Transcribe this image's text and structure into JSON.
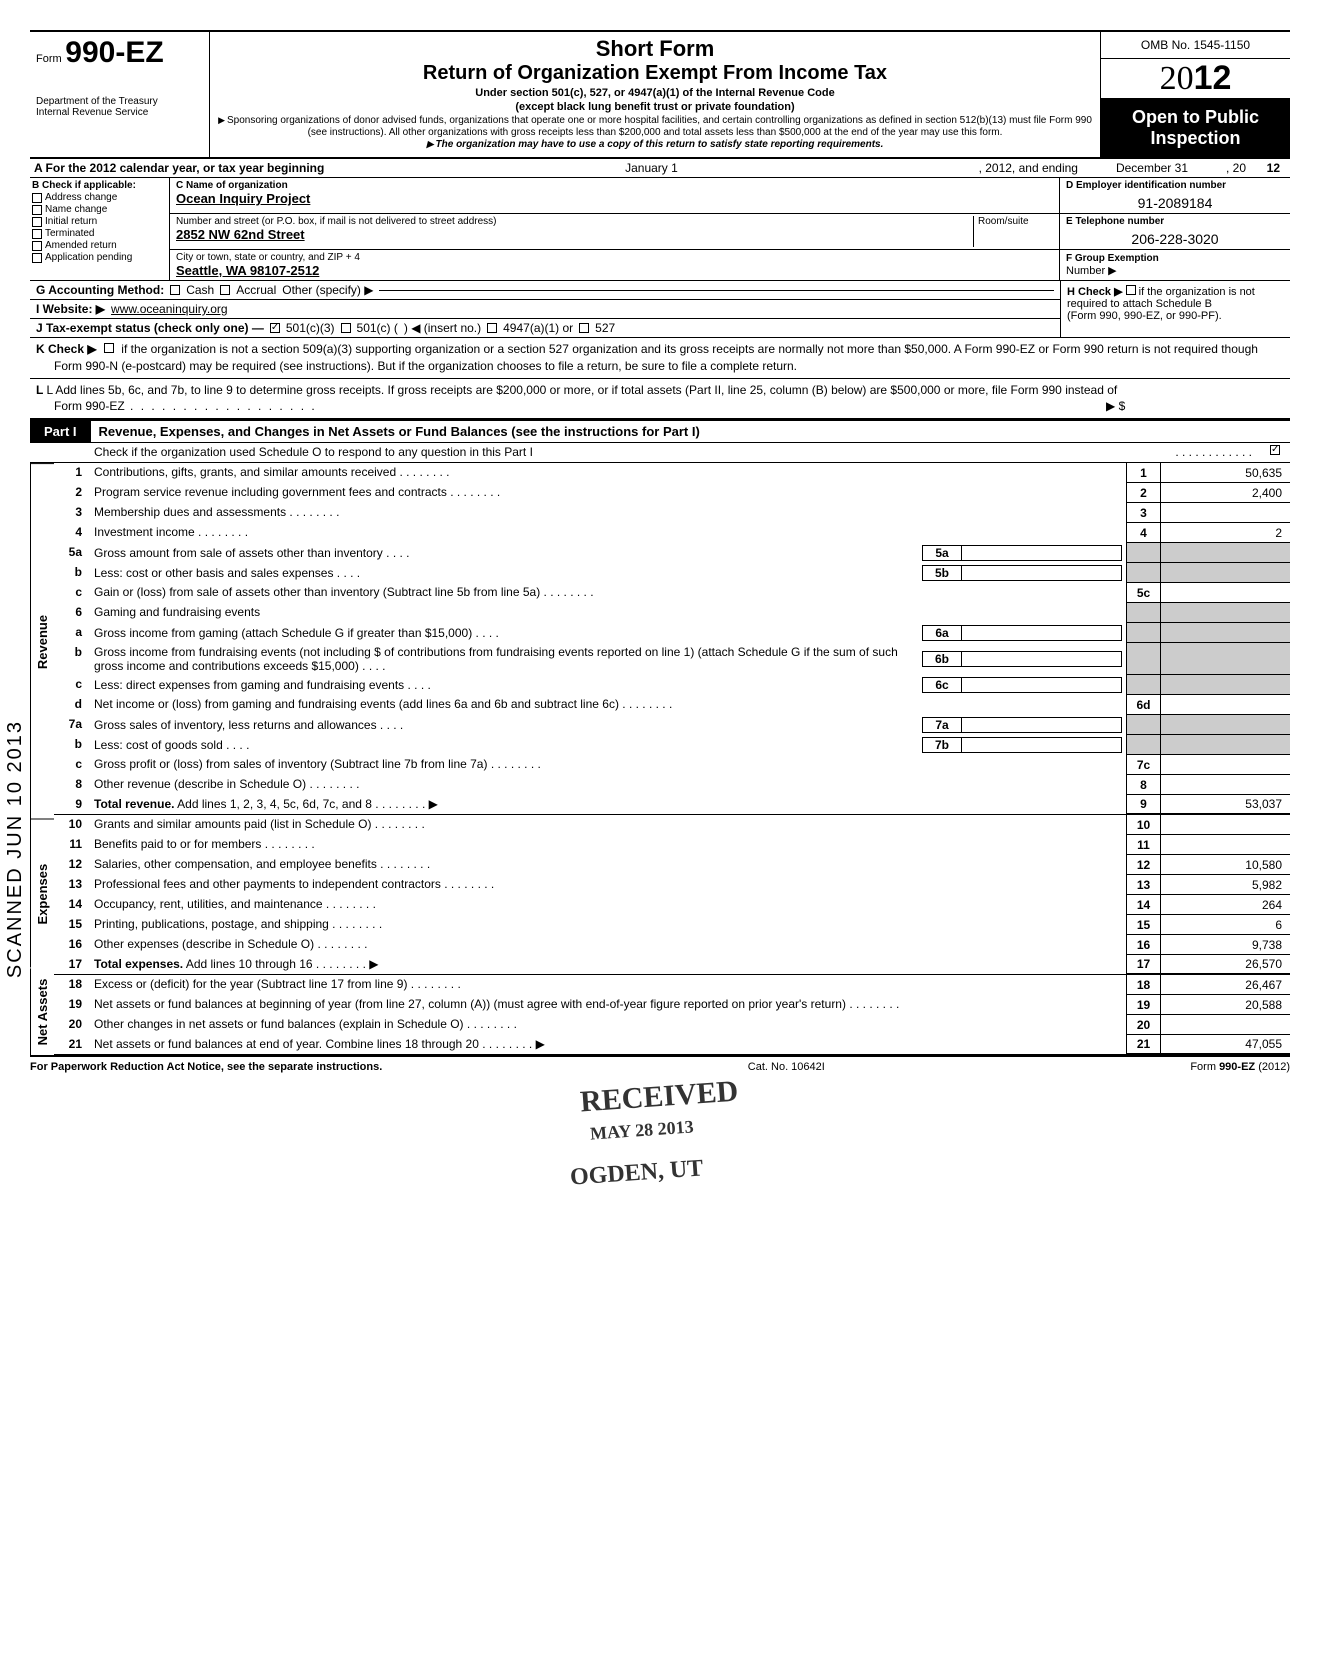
{
  "header": {
    "form_label": "Form",
    "form_number": "990-EZ",
    "dept1": "Department of the Treasury",
    "dept2": "Internal Revenue Service",
    "short_form": "Short Form",
    "title": "Return of Organization Exempt From Income Tax",
    "sub1": "Under section 501(c), 527, or 4947(a)(1) of the Internal Revenue Code",
    "sub2": "(except black lung benefit trust or private foundation)",
    "sub3": "Sponsoring organizations of donor advised funds, organizations that operate one or more hospital facilities, and certain controlling organizations as defined in section 512(b)(13) must file Form 990 (see instructions). All other organizations with gross receipts less than $200,000 and total assets less than $500,000 at the end of the year may use this form.",
    "sub4": "The organization may have to use a copy of this return to satisfy state reporting requirements.",
    "omb": "OMB No. 1545-1150",
    "year_prefix": "20",
    "year_suffix": "12",
    "open1": "Open to Public",
    "open2": "Inspection"
  },
  "row_a": {
    "a": "A For the 2012 calendar year, or tax year beginning",
    "mid": "January 1",
    "mid2": ", 2012, and ending",
    "end": "December 31",
    "end2": ", 20",
    "end3": "12"
  },
  "section_b": {
    "title": "B  Check if applicable:",
    "opts": [
      "Address change",
      "Name change",
      "Initial return",
      "Terminated",
      "Amended return",
      "Application pending"
    ]
  },
  "section_c": {
    "label": "C  Name of organization",
    "name": "Ocean Inquiry Project",
    "addr_label": "Number and street (or P.O. box, if mail is not delivered to street address)",
    "room": "Room/suite",
    "street": "2852 NW 62nd Street",
    "city_label": "City or town, state or country, and ZIP + 4",
    "city": "Seattle, WA 98107-2512"
  },
  "section_d": {
    "label": "D Employer identification number",
    "value": "91-2089184"
  },
  "section_e": {
    "label": "E Telephone number",
    "value": "206-228-3020"
  },
  "section_f": {
    "label": "F Group Exemption",
    "label2": "Number ▶"
  },
  "row_g": {
    "g": "G Accounting Method:",
    "cash": "Cash",
    "accrual": "Accrual",
    "other": "Other (specify) ▶"
  },
  "row_h": {
    "text": "H Check ▶",
    "text2": "if the organization is not",
    "text3": "required to attach Schedule B",
    "text4": "(Form 990, 990-EZ, or 990-PF)."
  },
  "row_i": {
    "label": "I  Website: ▶",
    "value": "www.oceaninquiry.org"
  },
  "row_j": {
    "label": "J Tax-exempt status (check only one) —",
    "o1": "501(c)(3)",
    "o2": "501(c) (",
    "o2b": ") ◀ (insert no.)",
    "o3": "4947(a)(1) or",
    "o4": "527"
  },
  "row_k": {
    "label": "K Check ▶",
    "text": "if the organization is not a section 509(a)(3) supporting organization or a section 527 organization and its gross receipts are normally not more than $50,000. A Form 990-EZ or Form 990 return is not required though Form 990-N (e-postcard) may be required (see instructions). But if the organization chooses to file a return, be sure to file a complete return."
  },
  "row_l": {
    "text": "L Add lines 5b, 6c, and 7b, to line 9 to determine gross receipts. If gross receipts are $200,000 or more, or if total assets (Part II, line 25, column (B) below) are $500,000 or more, file Form 990 instead of Form 990-EZ",
    "arrow": "▶  $"
  },
  "part1": {
    "tab": "Part I",
    "title": "Revenue, Expenses, and Changes in Net Assets or Fund Balances (see the instructions for Part I)",
    "check_line": "Check if the organization used Schedule O to respond to any question in this Part I"
  },
  "side_labels": {
    "rev": "Revenue",
    "exp": "Expenses",
    "na": "Net Assets"
  },
  "lines": {
    "1": {
      "n": "1",
      "d": "Contributions, gifts, grants, and similar amounts received",
      "rn": "1",
      "v": "50,635"
    },
    "2": {
      "n": "2",
      "d": "Program service revenue including government fees and contracts",
      "rn": "2",
      "v": "2,400"
    },
    "3": {
      "n": "3",
      "d": "Membership dues and assessments",
      "rn": "3",
      "v": ""
    },
    "4": {
      "n": "4",
      "d": "Investment income",
      "rn": "4",
      "v": "2"
    },
    "5a": {
      "n": "5a",
      "d": "Gross amount from sale of assets other than inventory",
      "mb": "5a"
    },
    "5b": {
      "n": "b",
      "d": "Less: cost or other basis and sales expenses",
      "mb": "5b"
    },
    "5c": {
      "n": "c",
      "d": "Gain or (loss) from sale of assets other than inventory (Subtract line 5b from line 5a)",
      "rn": "5c",
      "v": ""
    },
    "6": {
      "n": "6",
      "d": "Gaming and fundraising events"
    },
    "6a": {
      "n": "a",
      "d": "Gross income from gaming (attach Schedule G if greater than $15,000)",
      "mb": "6a"
    },
    "6b": {
      "n": "b",
      "d": "Gross income from fundraising events (not including  $                       of contributions from fundraising events reported on line 1) (attach Schedule G if the sum of such gross income and contributions exceeds $15,000)",
      "mb": "6b"
    },
    "6c": {
      "n": "c",
      "d": "Less: direct expenses from gaming and fundraising events",
      "mb": "6c"
    },
    "6d": {
      "n": "d",
      "d": "Net income or (loss) from gaming and fundraising events (add lines 6a and 6b and subtract line 6c)",
      "rn": "6d",
      "v": ""
    },
    "7a": {
      "n": "7a",
      "d": "Gross sales of inventory, less returns and allowances",
      "mb": "7a"
    },
    "7b": {
      "n": "b",
      "d": "Less: cost of goods sold",
      "mb": "7b"
    },
    "7c": {
      "n": "c",
      "d": "Gross profit or (loss) from sales of inventory (Subtract line 7b from line 7a)",
      "rn": "7c",
      "v": ""
    },
    "8": {
      "n": "8",
      "d": "Other revenue (describe in Schedule O)",
      "rn": "8",
      "v": ""
    },
    "9": {
      "n": "9",
      "d": "Total revenue. Add lines 1, 2, 3, 4, 5c, 6d, 7c, and 8",
      "rn": "9",
      "v": "53,037",
      "bold": true,
      "arrow": true
    },
    "10": {
      "n": "10",
      "d": "Grants and similar amounts paid (list in Schedule O)",
      "rn": "10",
      "v": ""
    },
    "11": {
      "n": "11",
      "d": "Benefits paid to or for members",
      "rn": "11",
      "v": ""
    },
    "12": {
      "n": "12",
      "d": "Salaries, other compensation, and employee benefits",
      "rn": "12",
      "v": "10,580"
    },
    "13": {
      "n": "13",
      "d": "Professional fees and other payments to independent contractors",
      "rn": "13",
      "v": "5,982"
    },
    "14": {
      "n": "14",
      "d": "Occupancy, rent, utilities, and maintenance",
      "rn": "14",
      "v": "264"
    },
    "15": {
      "n": "15",
      "d": "Printing, publications, postage, and shipping",
      "rn": "15",
      "v": "6"
    },
    "16": {
      "n": "16",
      "d": "Other expenses (describe in Schedule O)",
      "rn": "16",
      "v": "9,738"
    },
    "17": {
      "n": "17",
      "d": "Total expenses. Add lines 10 through 16",
      "rn": "17",
      "v": "26,570",
      "bold": true,
      "arrow": true
    },
    "18": {
      "n": "18",
      "d": "Excess or (deficit) for the year (Subtract line 17 from line 9)",
      "rn": "18",
      "v": "26,467"
    },
    "19": {
      "n": "19",
      "d": "Net assets or fund balances at beginning of year (from line 27, column (A)) (must agree with end-of-year figure reported on prior year's return)",
      "rn": "19",
      "v": "20,588"
    },
    "20": {
      "n": "20",
      "d": "Other changes in net assets or fund balances (explain in Schedule O)",
      "rn": "20",
      "v": ""
    },
    "21": {
      "n": "21",
      "d": "Net assets or fund balances at end of year. Combine lines 18 through 20",
      "rn": "21",
      "v": "47,055",
      "arrow": true
    }
  },
  "footer": {
    "left": "For Paperwork Reduction Act Notice, see the separate instructions.",
    "mid": "Cat. No. 10642I",
    "right": "Form 990-EZ (2012)"
  },
  "stamps": {
    "received": "RECEIVED",
    "date": "MAY 28 2013",
    "ogden": "OGDEN, UT",
    "scanned": "SCANNED JUN 10 2013"
  }
}
